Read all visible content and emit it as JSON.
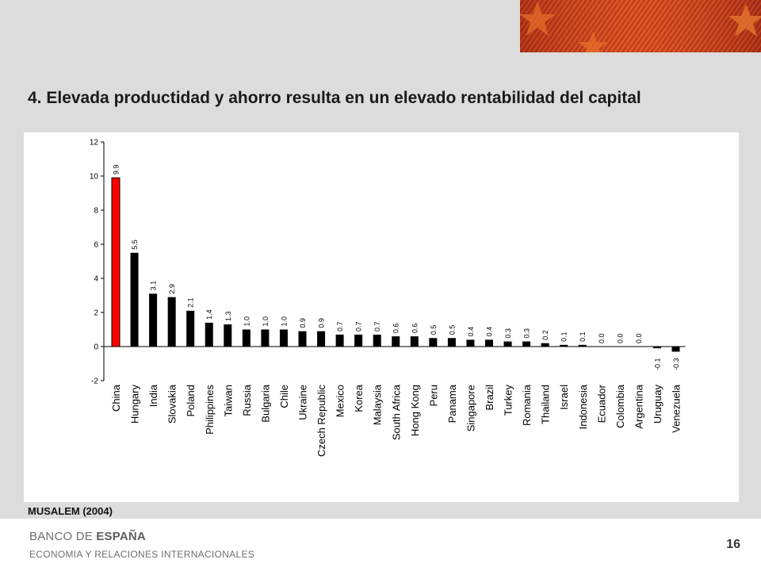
{
  "slide": {
    "title": "4. Elevada productidad y ahorro resulta en un elevado rentabilidad del capital",
    "source": "MUSALEM (2004)",
    "page_number": "16"
  },
  "footer": {
    "logo_light": "BANCO DE ",
    "logo_bold": "ESPAÑA",
    "department": "ECONOMIA  Y RELACIONES  INTERNACIONALES"
  },
  "colors": {
    "highlight_bar": "#ff0000",
    "bar": "#000000",
    "banner": "#c8401c"
  },
  "chart_data": {
    "type": "bar",
    "categories": [
      "China",
      "Hungary",
      "India",
      "Slovakia",
      "Poland",
      "Philippines",
      "Taiwan",
      "Russia",
      "Bulgaria",
      "Chile",
      "Ukraine",
      "Czech Republic",
      "Mexico",
      "Korea",
      "Malaysia",
      "South Africa",
      "Hong Kong",
      "Peru",
      "Panama",
      "Singapore",
      "Brazil",
      "Turkey",
      "Romania",
      "Thailand",
      "Israel",
      "Indonesia",
      "Ecuador",
      "Colombia",
      "Argentina",
      "Uruguay",
      "Venezuela"
    ],
    "values": [
      9.9,
      5.5,
      3.1,
      2.9,
      2.1,
      1.4,
      1.3,
      1.0,
      1.0,
      1.0,
      0.9,
      0.9,
      0.7,
      0.7,
      0.7,
      0.6,
      0.6,
      0.5,
      0.5,
      0.4,
      0.4,
      0.3,
      0.3,
      0.2,
      0.1,
      0.1,
      0.0,
      0.0,
      0.0,
      -0.1,
      -0.3
    ],
    "data_labels": [
      "9.9",
      "5.5",
      "3.1",
      "2.9",
      "2.1",
      "1.4",
      "1.3",
      "1.0",
      "1.0",
      "1.0",
      "0.9",
      "0.9",
      "0.7",
      "0.7",
      "0.7",
      "0.6",
      "0.6",
      "0.5",
      "0.5",
      "0.4",
      "0.4",
      "0.3",
      "0.3",
      "0.2",
      "0.1",
      "0.1",
      "0.0",
      "0.0",
      "0.0",
      "-0.1",
      "-0.3"
    ],
    "highlight_index": 0,
    "yticks": [
      "12",
      "10",
      "8",
      "6",
      "4",
      "2",
      "0",
      "-2"
    ],
    "ylim": [
      -2,
      12
    ],
    "grid": false,
    "legend": "none"
  }
}
